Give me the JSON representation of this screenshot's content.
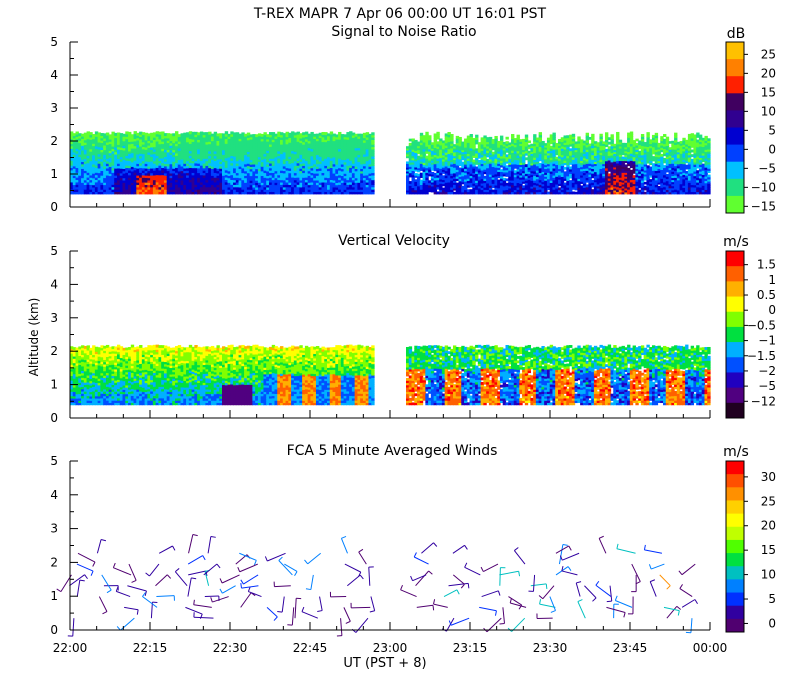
{
  "figure_title": "T-REX  MAPR  7 Apr 06  00:00 UT  16:01  PST",
  "x_axis": {
    "label": "UT  (PST + 8)",
    "range_minutes": [
      0,
      120
    ],
    "ticks": [
      {
        "t": 0,
        "label": "22:00"
      },
      {
        "t": 15,
        "label": "22:15"
      },
      {
        "t": 30,
        "label": "22:30"
      },
      {
        "t": 45,
        "label": "22:45"
      },
      {
        "t": 60,
        "label": "23:00"
      },
      {
        "t": 75,
        "label": "23:15"
      },
      {
        "t": 90,
        "label": "23:30"
      },
      {
        "t": 105,
        "label": "23:45"
      },
      {
        "t": 120,
        "label": "00:00"
      }
    ]
  },
  "chart_data": [
    {
      "type": "heatmap",
      "title": "Signal to Noise Ratio",
      "ylabel": "",
      "ylim": [
        0,
        5
      ],
      "yticks": [
        "0",
        "1",
        "2",
        "3",
        "4",
        "5"
      ],
      "data_segments_minutes": [
        [
          0,
          57
        ],
        [
          63,
          120
        ]
      ],
      "gate_range_km": [
        0.4,
        2.3
      ],
      "colorbar": {
        "unit": "dB",
        "labels": [
          "25",
          "20",
          "15",
          "10",
          "5",
          "0",
          "−5",
          "−10",
          "−15"
        ],
        "colors": [
          "#ffc000",
          "#ff8000",
          "#ff2000",
          "#400060",
          "#300090",
          "#0000d0",
          "#0040ff",
          "#00c0ff",
          "#20e080",
          "#60ff30"
        ]
      }
    },
    {
      "type": "heatmap",
      "title": "Vertical Velocity",
      "ylabel": "Altitude  (km)",
      "ylim": [
        0,
        5
      ],
      "yticks": [
        "0",
        "1",
        "2",
        "3",
        "4",
        "5"
      ],
      "data_segments_minutes": [
        [
          0,
          57
        ],
        [
          63,
          120
        ]
      ],
      "gate_range_km": [
        0.4,
        2.2
      ],
      "colorbar": {
        "unit": "m/s",
        "labels": [
          "1.5",
          "1",
          "0.5",
          "0",
          "−0.5",
          "−1",
          "−1.5",
          "−2",
          "−5",
          "−12"
        ],
        "colors": [
          "#ff0000",
          "#ff6000",
          "#ffb000",
          "#ffff00",
          "#80ff00",
          "#00e040",
          "#00b0ff",
          "#0050ff",
          "#2000c0",
          "#500080",
          "#200020"
        ]
      }
    },
    {
      "type": "scatter",
      "title": "FCA 5 Minute Averaged Winds",
      "ylabel": "",
      "ylim": [
        0,
        5
      ],
      "yticks": [
        "0",
        "1",
        "2",
        "3",
        "4",
        "5"
      ],
      "series_desc": "wind barbs (5 minute averaged) between 0.3 and 2.3 km altitude",
      "colorbar": {
        "unit": "m/s",
        "labels": [
          "30",
          "25",
          "20",
          "15",
          "10",
          "5",
          "0"
        ],
        "colors": [
          "#ff0000",
          "#ff5000",
          "#ff9000",
          "#ffd000",
          "#ffff00",
          "#c0ff00",
          "#50ff00",
          "#00e040",
          "#00c0c0",
          "#0080ff",
          "#0030ff",
          "#3000a0",
          "#500070"
        ]
      }
    }
  ]
}
